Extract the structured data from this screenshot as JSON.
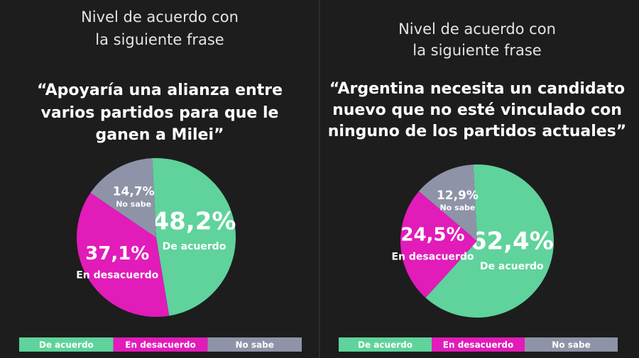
{
  "chart_data": [
    {
      "type": "pie",
      "title": [
        "Nivel de acuerdo con",
        "la siguiente frase"
      ],
      "subtitle": [
        "“Apoyaría una alianza entre",
        "varios partidos para que le",
        "ganen a Milei”"
      ],
      "categories": [
        "De acuerdo",
        "En desacuerdo",
        "No sabe"
      ],
      "values": [
        48.2,
        37.1,
        14.7
      ],
      "value_labels": [
        "48,2%",
        "37,1%",
        "14,7%"
      ],
      "colors": [
        "#5fd39b",
        "#e11cb9",
        "#8f93a8"
      ]
    },
    {
      "type": "pie",
      "title": [
        "Nivel de acuerdo con",
        "la siguiente frase"
      ],
      "subtitle": [
        "“Argentina necesita un candidato",
        "nuevo que no esté vinculado con",
        "ninguno de los partidos actuales”"
      ],
      "categories": [
        "De acuerdo",
        "En desacuerdo",
        "No sabe"
      ],
      "values": [
        62.4,
        24.5,
        12.9
      ],
      "value_labels": [
        "62,4%",
        "24,5%",
        "12,9%"
      ],
      "colors": [
        "#5fd39b",
        "#e11cb9",
        "#8f93a8"
      ]
    }
  ]
}
